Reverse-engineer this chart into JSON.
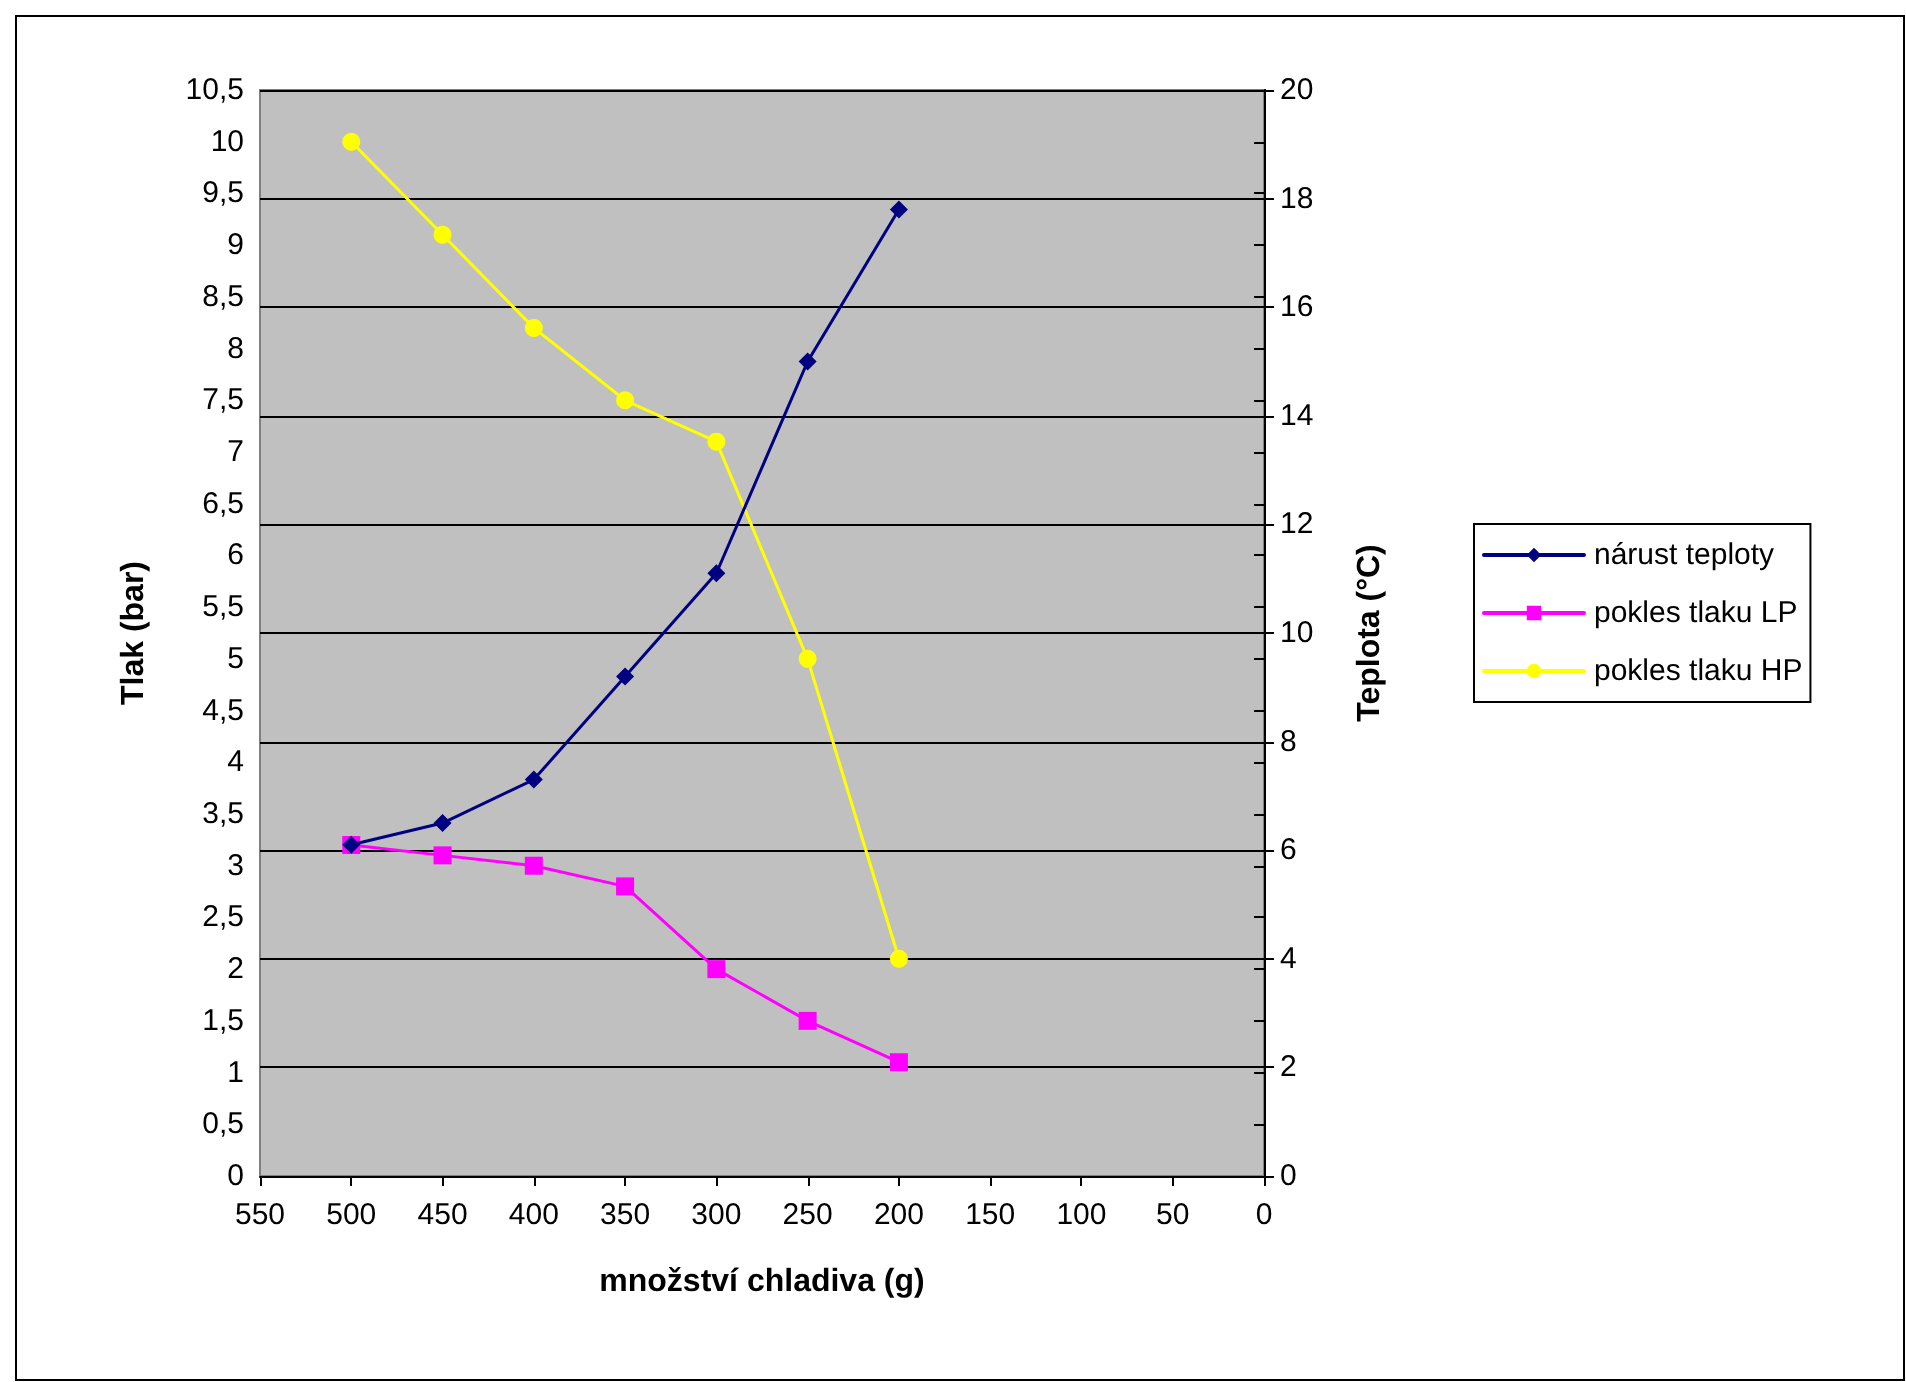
{
  "chart_data": {
    "type": "line",
    "xlabel": "množství chladiva (g)",
    "ylabel": "Tlak (bar)",
    "y2label": "Teplota (°C)",
    "x": [
      500,
      450,
      400,
      350,
      300,
      250,
      200
    ],
    "series": [
      {
        "name": "nárust teploty",
        "color": "#000080",
        "marker": "diamond",
        "axis": "y2",
        "values": [
          6.1,
          6.5,
          7.3,
          9.2,
          11.1,
          15.0,
          17.8
        ]
      },
      {
        "name": "pokles tlaku LP",
        "color": "#ff00ff",
        "marker": "square",
        "values": [
          3.2,
          3.1,
          3.0,
          2.8,
          2.0,
          1.5,
          1.1
        ]
      },
      {
        "name": "pokles tlaku HP",
        "color": "#ffff00",
        "marker": "circle",
        "values": [
          10.0,
          9.1,
          8.2,
          7.5,
          7.1,
          5.0,
          2.1
        ]
      }
    ],
    "xlim": [
      550,
      0
    ],
    "xticks": [
      550,
      500,
      450,
      400,
      350,
      300,
      250,
      200,
      150,
      100,
      50,
      0
    ],
    "ylim": [
      0,
      10.5
    ],
    "yticks": [
      0,
      {
        "value": 0.5,
        "label": "0,5"
      },
      1,
      {
        "value": 1.5,
        "label": "1,5"
      },
      2,
      {
        "value": 2.5,
        "label": "2,5"
      },
      3,
      {
        "value": 3.5,
        "label": "3,5"
      },
      4,
      {
        "value": 4.5,
        "label": "4,5"
      },
      5,
      {
        "value": 5.5,
        "label": "5,5"
      },
      6,
      {
        "value": 6.5,
        "label": "6,5"
      },
      7,
      {
        "value": 7.5,
        "label": "7,5"
      },
      8,
      {
        "value": 8.5,
        "label": "8,5"
      },
      9,
      {
        "value": 9.5,
        "label": "9,5"
      },
      10,
      {
        "value": 10.5,
        "label": "10,5"
      }
    ],
    "y2lim": [
      0,
      20
    ],
    "y2ticks": [
      0,
      2,
      4,
      6,
      8,
      10,
      12,
      14,
      16,
      18,
      20
    ],
    "grid": "y",
    "legend": "right",
    "line_style": "solid"
  }
}
